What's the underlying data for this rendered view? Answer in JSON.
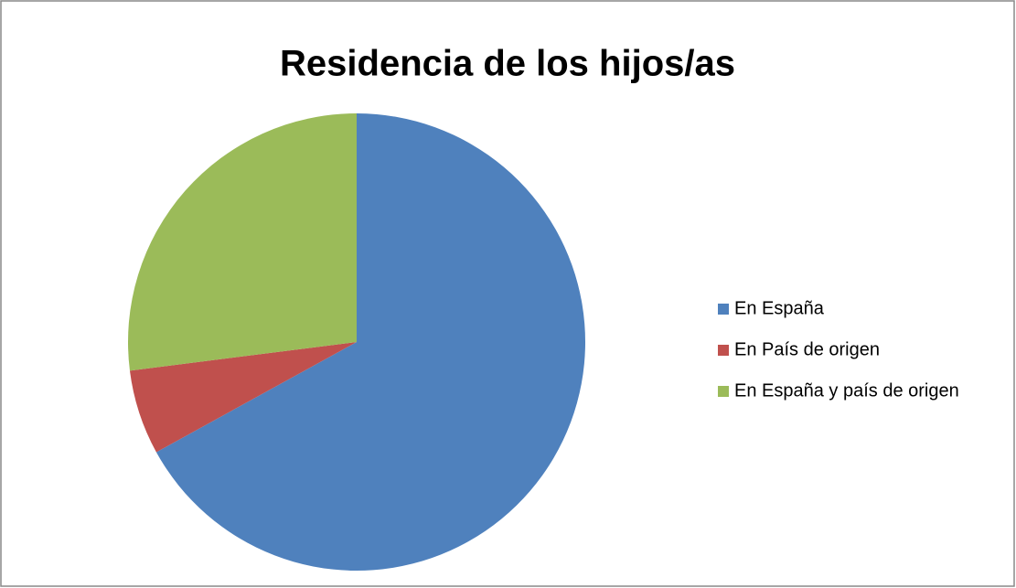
{
  "chart_data": {
    "type": "pie",
    "title": "Residencia de los hijos/as",
    "categories": [
      "En España",
      "En País de origen",
      "En España y país de origen"
    ],
    "values": [
      67,
      6,
      27
    ],
    "colors": [
      "#4f81bd",
      "#c0504d",
      "#9bbb59"
    ],
    "legend": "right"
  }
}
